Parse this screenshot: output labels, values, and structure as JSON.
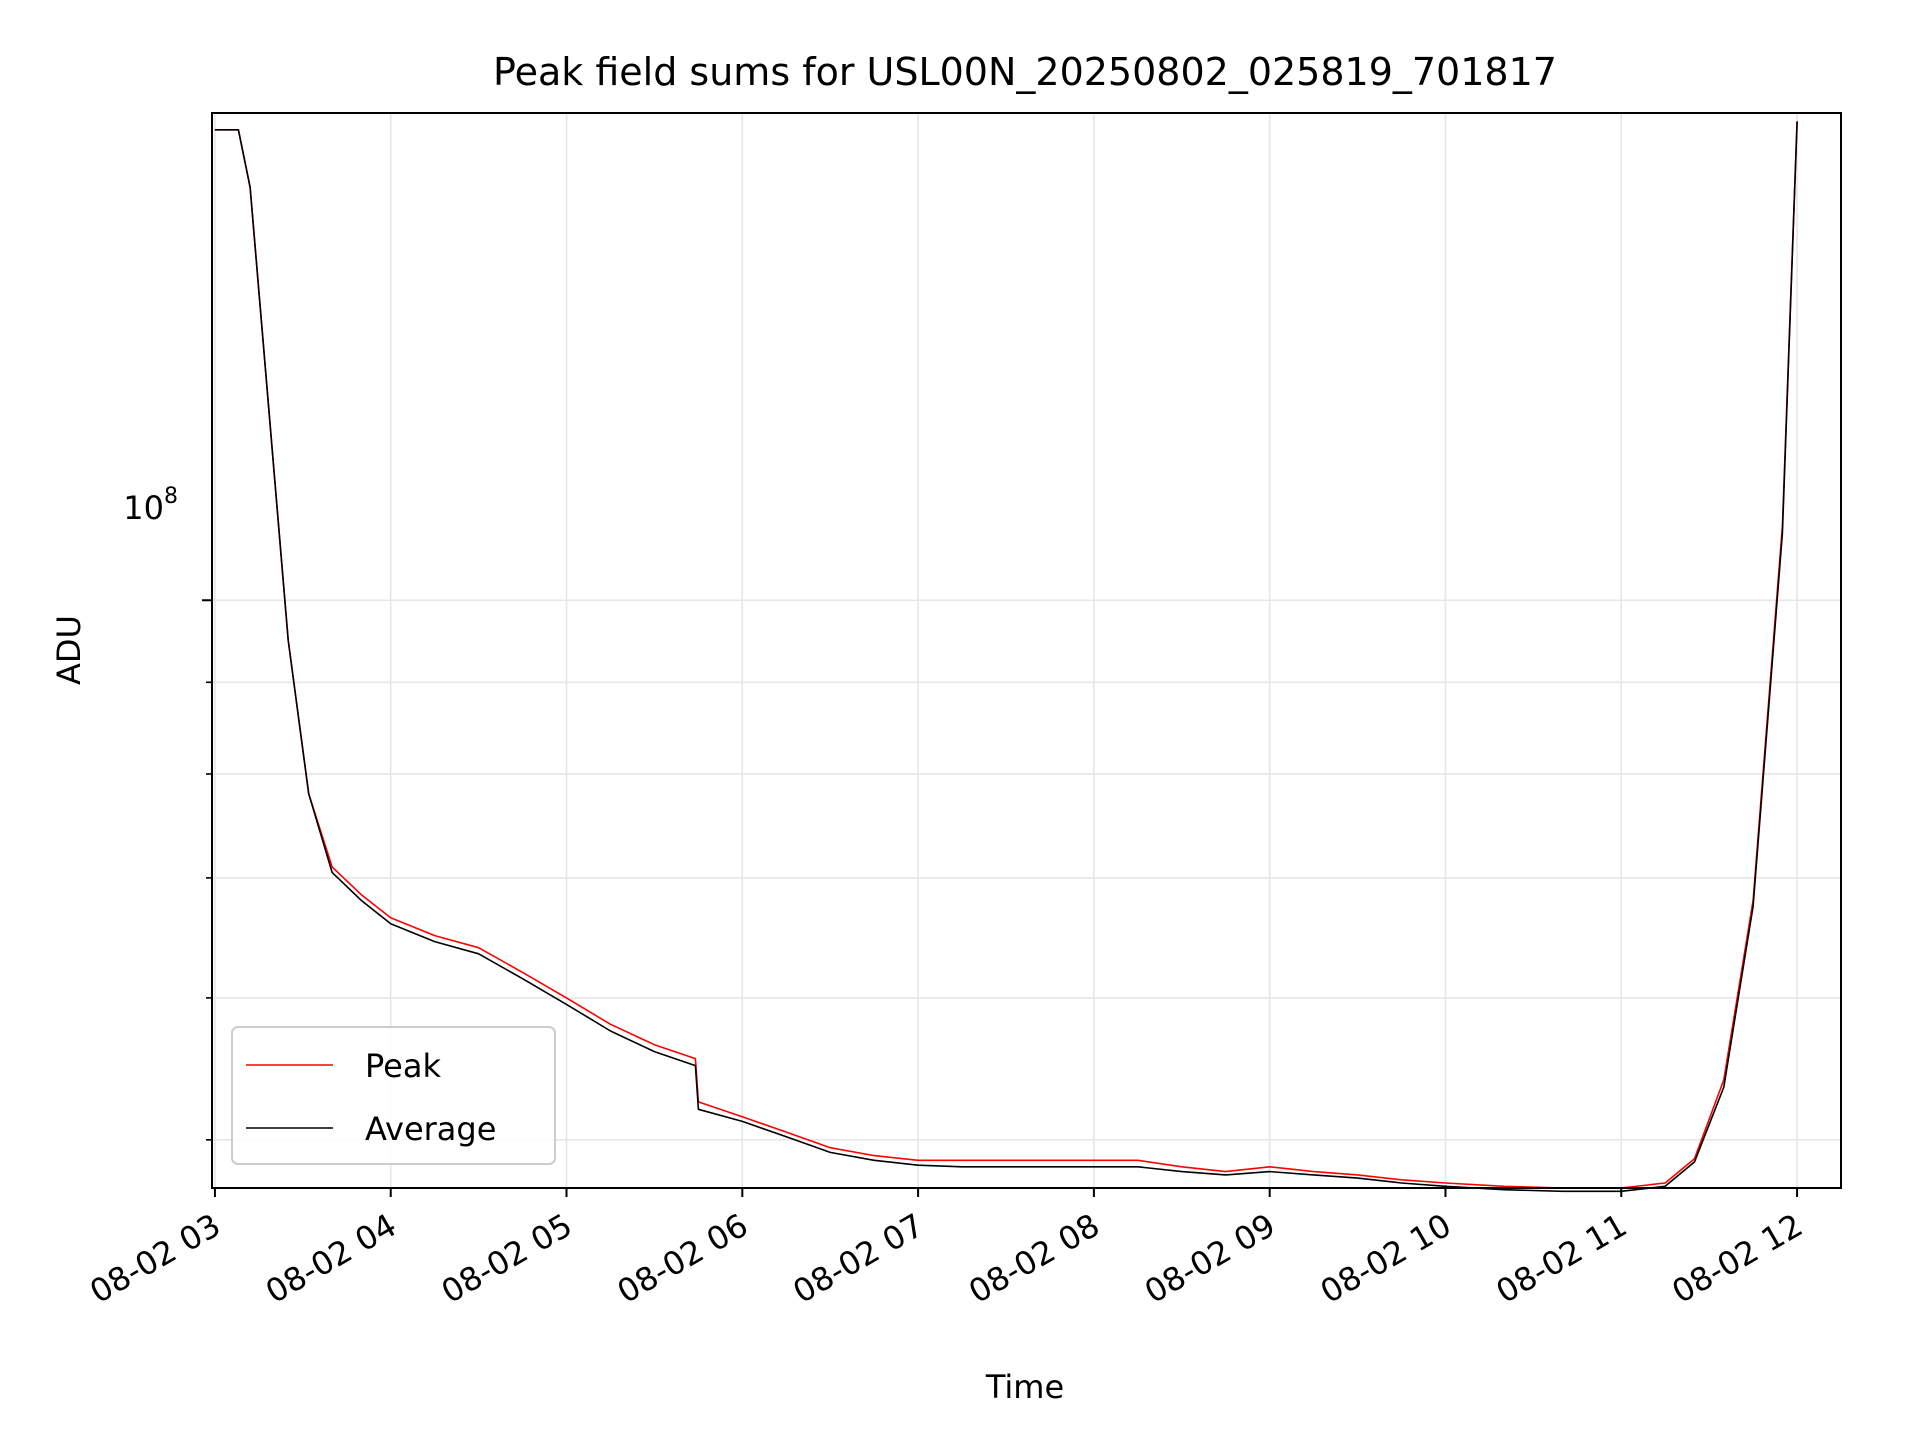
{
  "chart_data": {
    "type": "line",
    "title": "Peak field sums for USL00N_20250802_025819_701817",
    "xlabel": "Time",
    "ylabel": "ADU",
    "y_scale": "log",
    "ylim": [
      47000000,
      187000000
    ],
    "xlim": [
      "08-02 02:59",
      "08-02 12:15"
    ],
    "x_ticks": [
      "08-02 03",
      "08-02 04",
      "08-02 05",
      "08-02 06",
      "08-02 07",
      "08-02 08",
      "08-02 09",
      "08-02 10",
      "08-02 11",
      "08-02 12"
    ],
    "y_major_tick_label": {
      "base": "10",
      "exponent": "8"
    },
    "grid": true,
    "legend_position": "lower-left",
    "series": [
      {
        "name": "Peak",
        "color": "#ff0000",
        "x": [
          "08-02 03:00",
          "08-02 03:08",
          "08-02 03:12",
          "08-02 03:18",
          "08-02 03:25",
          "08-02 03:32",
          "08-02 03:40",
          "08-02 03:50",
          "08-02 04:00",
          "08-02 04:15",
          "08-02 04:30",
          "08-02 04:45",
          "08-02 05:00",
          "08-02 05:15",
          "08-02 05:30",
          "08-02 05:44",
          "08-02 05:45",
          "08-02 06:00",
          "08-02 06:15",
          "08-02 06:30",
          "08-02 06:45",
          "08-02 07:00",
          "08-02 07:15",
          "08-02 07:30",
          "08-02 07:45",
          "08-02 08:00",
          "08-02 08:15",
          "08-02 08:30",
          "08-02 08:45",
          "08-02 09:00",
          "08-02 09:15",
          "08-02 09:30",
          "08-02 09:45",
          "08-02 10:00",
          "08-02 10:20",
          "08-02 10:40",
          "08-02 11:00",
          "08-02 11:15",
          "08-02 11:25",
          "08-02 11:35",
          "08-02 11:45",
          "08-02 11:55",
          "08-02 12:00"
        ],
        "y": [
          183000000,
          183000000,
          170000000,
          130000000,
          95000000,
          78000000,
          71000000,
          68500000,
          66500000,
          65000000,
          64000000,
          62000000,
          60000000,
          58000000,
          56500000,
          55500000,
          52500000,
          51500000,
          50500000,
          49500000,
          49000000,
          48700000,
          48700000,
          48700000,
          48700000,
          48700000,
          48700000,
          48300000,
          48000000,
          48300000,
          48000000,
          47800000,
          47500000,
          47300000,
          47100000,
          47000000,
          47000000,
          47300000,
          48800000,
          54000000,
          68000000,
          110000000,
          185000000
        ]
      },
      {
        "name": "Average",
        "color": "#000000",
        "x": [
          "08-02 03:00",
          "08-02 03:08",
          "08-02 03:12",
          "08-02 03:18",
          "08-02 03:25",
          "08-02 03:32",
          "08-02 03:40",
          "08-02 03:50",
          "08-02 04:00",
          "08-02 04:15",
          "08-02 04:30",
          "08-02 04:45",
          "08-02 05:00",
          "08-02 05:15",
          "08-02 05:30",
          "08-02 05:44",
          "08-02 05:45",
          "08-02 06:00",
          "08-02 06:15",
          "08-02 06:30",
          "08-02 06:45",
          "08-02 07:00",
          "08-02 07:15",
          "08-02 07:30",
          "08-02 07:45",
          "08-02 08:00",
          "08-02 08:15",
          "08-02 08:30",
          "08-02 08:45",
          "08-02 09:00",
          "08-02 09:15",
          "08-02 09:30",
          "08-02 09:45",
          "08-02 10:00",
          "08-02 10:20",
          "08-02 10:40",
          "08-02 11:00",
          "08-02 11:15",
          "08-02 11:25",
          "08-02 11:35",
          "08-02 11:45",
          "08-02 11:55",
          "08-02 12:00"
        ],
        "y": [
          183000000,
          183000000,
          170000000,
          130000000,
          95000000,
          78000000,
          70500000,
          68000000,
          66000000,
          64500000,
          63500000,
          61500000,
          59500000,
          57500000,
          56000000,
          55000000,
          52000000,
          51200000,
          50200000,
          49200000,
          48700000,
          48400000,
          48300000,
          48300000,
          48300000,
          48300000,
          48300000,
          48000000,
          47800000,
          48000000,
          47800000,
          47600000,
          47300000,
          47100000,
          46900000,
          46800000,
          46800000,
          47100000,
          48600000,
          53500000,
          67500000,
          109000000,
          185000000
        ]
      }
    ]
  }
}
